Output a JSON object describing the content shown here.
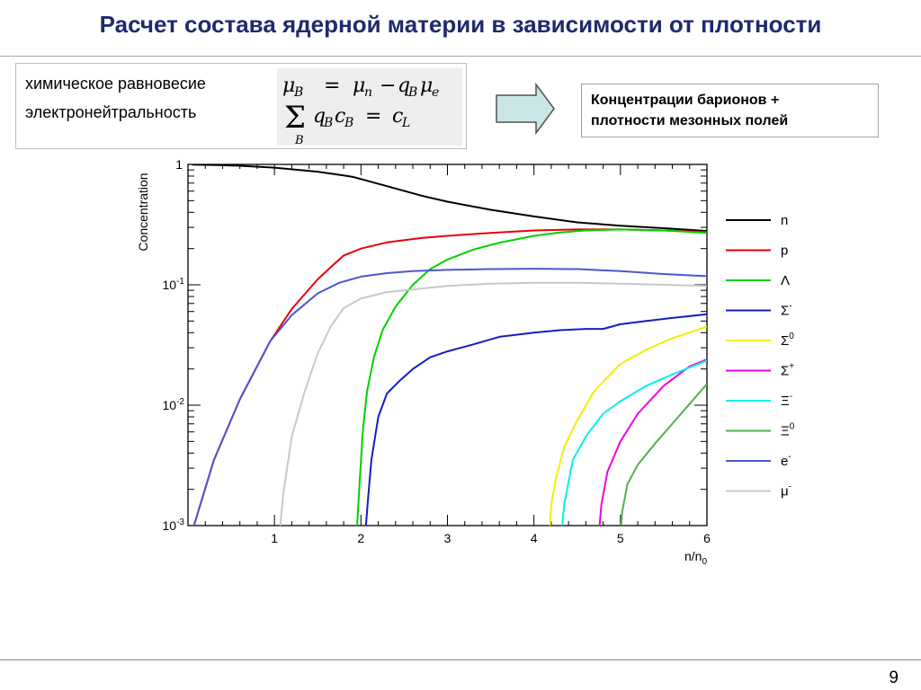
{
  "title": "Расчет состава ядерной материи в зависимости от плотности",
  "equations": {
    "label_1": "химическое равновесие",
    "label_2": "электронейтральность"
  },
  "result_box": {
    "line_1": "Концентрации барионов +",
    "line_2": "плотности мезонных полей"
  },
  "page_number": "9",
  "colors": {
    "title": "#1f2a6e",
    "arrow_fill": "#c9e6e6",
    "formula_bg": "#eeeeee"
  },
  "chart_data": {
    "type": "line",
    "ylabel": "Concentration",
    "xlabel": "n/n",
    "xlabel_sub": "0",
    "x_range": [
      0,
      6
    ],
    "y_range": [
      0.001,
      1
    ],
    "y_scale": "log",
    "grid": false,
    "legend_position": "right",
    "x_ticks": [
      "1",
      "2",
      "3",
      "4",
      "5",
      "6"
    ],
    "y_ticks": [
      {
        "base": "1",
        "exp": ""
      },
      {
        "base": "10",
        "exp": "-1"
      },
      {
        "base": "10",
        "exp": "-2"
      },
      {
        "base": "10",
        "exp": "-3"
      }
    ],
    "series": [
      {
        "name": "n",
        "sup": "",
        "color": "#000000",
        "points": [
          [
            0.05,
            0.995
          ],
          [
            0.3,
            0.99
          ],
          [
            0.6,
            0.975
          ],
          [
            1.0,
            0.94
          ],
          [
            1.5,
            0.87
          ],
          [
            1.9,
            0.79
          ],
          [
            2.3,
            0.66
          ],
          [
            2.7,
            0.55
          ],
          [
            3.0,
            0.49
          ],
          [
            3.5,
            0.42
          ],
          [
            4.0,
            0.37
          ],
          [
            4.5,
            0.33
          ],
          [
            5.0,
            0.31
          ],
          [
            5.5,
            0.295
          ],
          [
            6.0,
            0.28
          ]
        ]
      },
      {
        "name": "p",
        "sup": "",
        "color": "#e8000b",
        "points": [
          [
            0.05,
            0.0009
          ],
          [
            0.3,
            0.0035
          ],
          [
            0.6,
            0.0112
          ],
          [
            0.95,
            0.034
          ],
          [
            1.2,
            0.063
          ],
          [
            1.5,
            0.111
          ],
          [
            1.65,
            0.14
          ],
          [
            1.8,
            0.175
          ],
          [
            2.0,
            0.2
          ],
          [
            2.3,
            0.225
          ],
          [
            2.7,
            0.245
          ],
          [
            3.0,
            0.255
          ],
          [
            3.5,
            0.27
          ],
          [
            4.0,
            0.283
          ],
          [
            4.5,
            0.288
          ],
          [
            5.0,
            0.288
          ],
          [
            5.5,
            0.283
          ],
          [
            6.0,
            0.275
          ]
        ]
      },
      {
        "name": "Λ",
        "sup": "",
        "color": "#00d000",
        "points": [
          [
            1.95,
            0.00085
          ],
          [
            1.98,
            0.002
          ],
          [
            2.02,
            0.006
          ],
          [
            2.07,
            0.013
          ],
          [
            2.15,
            0.025
          ],
          [
            2.25,
            0.042
          ],
          [
            2.4,
            0.066
          ],
          [
            2.6,
            0.1
          ],
          [
            2.8,
            0.135
          ],
          [
            3.0,
            0.162
          ],
          [
            3.3,
            0.196
          ],
          [
            3.6,
            0.224
          ],
          [
            4.0,
            0.255
          ],
          [
            4.3,
            0.272
          ],
          [
            4.6,
            0.283
          ],
          [
            5.0,
            0.288
          ],
          [
            5.5,
            0.283
          ],
          [
            6.0,
            0.27
          ]
        ]
      },
      {
        "name": "Σ",
        "sup": "-",
        "color": "#1020c0",
        "points": [
          [
            2.05,
            0.00085
          ],
          [
            2.08,
            0.0016
          ],
          [
            2.12,
            0.0035
          ],
          [
            2.2,
            0.008
          ],
          [
            2.3,
            0.0125
          ],
          [
            2.45,
            0.016
          ],
          [
            2.6,
            0.02
          ],
          [
            2.8,
            0.025
          ],
          [
            3.0,
            0.028
          ],
          [
            3.3,
            0.032
          ],
          [
            3.6,
            0.037
          ],
          [
            4.0,
            0.04
          ],
          [
            4.3,
            0.042
          ],
          [
            4.6,
            0.043
          ],
          [
            4.8,
            0.043
          ],
          [
            5.0,
            0.047
          ],
          [
            5.3,
            0.05
          ],
          [
            5.6,
            0.053
          ],
          [
            6.0,
            0.057
          ]
        ]
      },
      {
        "name": "Σ",
        "sup": "0",
        "color": "#f0f000",
        "points": [
          [
            4.18,
            0.00085
          ],
          [
            4.2,
            0.0015
          ],
          [
            4.25,
            0.0024
          ],
          [
            4.35,
            0.0045
          ],
          [
            4.5,
            0.0075
          ],
          [
            4.7,
            0.0132
          ],
          [
            5.0,
            0.022
          ],
          [
            5.3,
            0.029
          ],
          [
            5.6,
            0.036
          ],
          [
            6.0,
            0.045
          ]
        ]
      },
      {
        "name": "Σ",
        "sup": "+",
        "color": "#f000e0",
        "points": [
          [
            4.75,
            0.00085
          ],
          [
            4.78,
            0.0015
          ],
          [
            4.85,
            0.0028
          ],
          [
            5.0,
            0.005
          ],
          [
            5.2,
            0.0085
          ],
          [
            5.5,
            0.0145
          ],
          [
            5.8,
            0.021
          ],
          [
            6.0,
            0.024
          ]
        ]
      },
      {
        "name": "Ξ",
        "sup": "-",
        "color": "#00f0f0",
        "points": [
          [
            4.32,
            0.00085
          ],
          [
            4.35,
            0.0015
          ],
          [
            4.45,
            0.0035
          ],
          [
            4.6,
            0.0055
          ],
          [
            4.8,
            0.0085
          ],
          [
            5.0,
            0.0108
          ],
          [
            5.3,
            0.0145
          ],
          [
            5.6,
            0.018
          ],
          [
            6.0,
            0.0235
          ]
        ]
      },
      {
        "name": "Ξ",
        "sup": "0",
        "color": "#50b050",
        "points": [
          [
            5.0,
            0.00085
          ],
          [
            5.02,
            0.0013
          ],
          [
            5.08,
            0.0022
          ],
          [
            5.2,
            0.0032
          ],
          [
            5.4,
            0.0048
          ],
          [
            5.7,
            0.0085
          ],
          [
            6.0,
            0.015
          ]
        ]
      },
      {
        "name": "e",
        "sup": "-",
        "color": "#5055d0",
        "points": [
          [
            0.05,
            0.0009
          ],
          [
            0.3,
            0.0035
          ],
          [
            0.6,
            0.0112
          ],
          [
            0.95,
            0.034
          ],
          [
            1.2,
            0.056
          ],
          [
            1.5,
            0.085
          ],
          [
            1.75,
            0.104
          ],
          [
            2.0,
            0.117
          ],
          [
            2.3,
            0.125
          ],
          [
            2.6,
            0.13
          ],
          [
            3.0,
            0.133
          ],
          [
            3.5,
            0.135
          ],
          [
            4.0,
            0.136
          ],
          [
            4.5,
            0.135
          ],
          [
            5.0,
            0.13
          ],
          [
            5.5,
            0.123
          ],
          [
            6.0,
            0.118
          ]
        ]
      },
      {
        "name": "μ",
        "sup": "-",
        "color": "#c8c8c8",
        "points": [
          [
            1.06,
            0.00085
          ],
          [
            1.1,
            0.0018
          ],
          [
            1.2,
            0.0055
          ],
          [
            1.35,
            0.013
          ],
          [
            1.5,
            0.027
          ],
          [
            1.65,
            0.045
          ],
          [
            1.8,
            0.064
          ],
          [
            2.0,
            0.077
          ],
          [
            2.3,
            0.087
          ],
          [
            2.7,
            0.093
          ],
          [
            3.0,
            0.098
          ],
          [
            3.5,
            0.102
          ],
          [
            4.0,
            0.104
          ],
          [
            4.5,
            0.104
          ],
          [
            5.0,
            0.102
          ],
          [
            5.5,
            0.1
          ],
          [
            6.0,
            0.098
          ]
        ]
      }
    ]
  }
}
